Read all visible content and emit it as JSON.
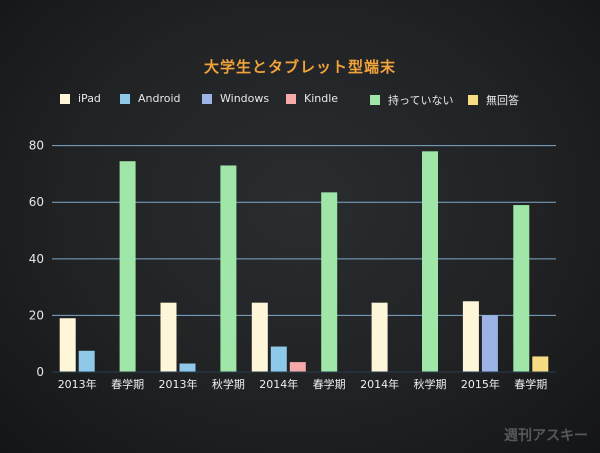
{
  "chart_data": {
    "type": "bar",
    "title": "大学生とタブレット型端末",
    "categories": [
      "2013年",
      "春学期",
      "2013年",
      "秋学期",
      "2014年",
      "春学期",
      "2014年",
      "秋学期",
      "2015年",
      "春学期"
    ],
    "series": [
      {
        "name": "iPad",
        "color": "#fdf6d8",
        "values": [
          19,
          null,
          24.5,
          null,
          24.5,
          null,
          24.5,
          null,
          25,
          null
        ]
      },
      {
        "name": "Android",
        "color": "#8fc9ea",
        "values": [
          7.5,
          null,
          3,
          null,
          9,
          null,
          null,
          null,
          null,
          null
        ]
      },
      {
        "name": "Windows",
        "color": "#9db3e6",
        "values": [
          null,
          null,
          null,
          null,
          null,
          null,
          null,
          null,
          20,
          null
        ]
      },
      {
        "name": "Kindle",
        "color": "#f5a9a9",
        "values": [
          null,
          null,
          null,
          null,
          3.5,
          null,
          null,
          null,
          null,
          null
        ]
      },
      {
        "name": "持っていない",
        "color": "#9fe6a8",
        "values": [
          null,
          74.5,
          null,
          73,
          null,
          63.5,
          null,
          78,
          null,
          59
        ]
      },
      {
        "name": "無回答",
        "color": "#f6dc82",
        "values": [
          null,
          null,
          null,
          null,
          null,
          null,
          null,
          null,
          null,
          5.5
        ]
      }
    ],
    "yticks": [
      0,
      20,
      40,
      60,
      80
    ],
    "ylim": [
      0,
      82
    ],
    "grid": true,
    "legend_position": "top"
  },
  "watermark": "週刊アスキー"
}
